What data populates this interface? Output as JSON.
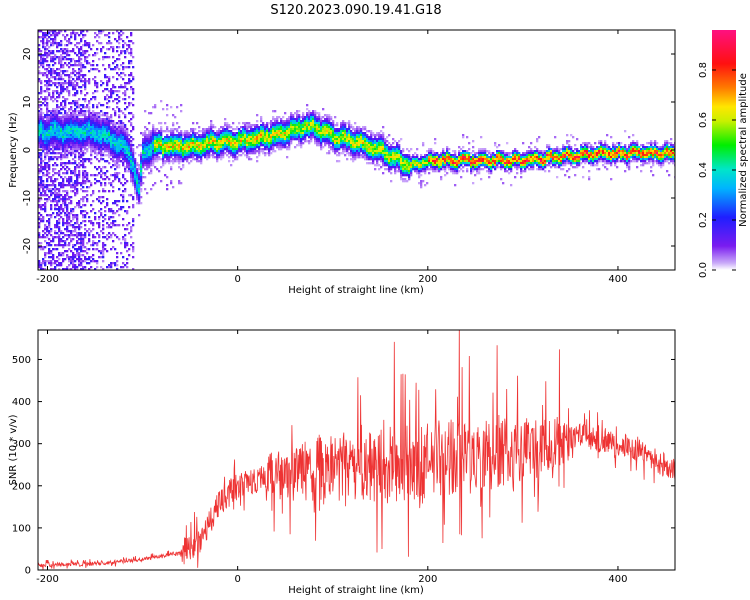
{
  "title": "S120.2023.090.19.41.G18",
  "chart_data": [
    {
      "type": "heatmap",
      "xlabel": "Height of straight line (km)",
      "ylabel": "Frequency (Hz)",
      "xlim": [
        -210,
        460
      ],
      "ylim": [
        -25,
        25
      ],
      "xticks": [
        -200,
        0,
        200,
        400
      ],
      "yticks": [
        -20,
        -10,
        0,
        10,
        20
      ],
      "colorbar": {
        "label": "Normalized spectral amplitude",
        "range": [
          0,
          0.96
        ],
        "ticks": [
          "0.0",
          "0.2",
          "0.4",
          "0.6",
          "0.8"
        ],
        "colormap": "rainbow (purple-blue-cyan-green-yellow-red-pink)"
      },
      "ridge": {
        "x": [
          -150,
          -130,
          -115,
          -105,
          -100,
          -90,
          -50,
          -20,
          0,
          30,
          50,
          70,
          80,
          100,
          120,
          140,
          160,
          180,
          200,
          250,
          300,
          350,
          400,
          460
        ],
        "y": [
          4,
          2,
          0,
          -8,
          0,
          1,
          1,
          2,
          2,
          3,
          4,
          5,
          5,
          3,
          2,
          1,
          -1,
          -3,
          -2,
          -2,
          -2,
          -1,
          -0.5,
          -0.5
        ]
      }
    },
    {
      "type": "line",
      "xlabel": "Height of straight line (km)",
      "ylabel": "SNR (10 * v/v)",
      "xlim": [
        -210,
        460
      ],
      "ylim": [
        0,
        570
      ],
      "xticks": [
        -200,
        0,
        200,
        400
      ],
      "yticks": [
        0,
        100,
        200,
        300,
        400,
        500
      ],
      "color": "#ee3333",
      "envelope": {
        "x": [
          -210,
          -150,
          -100,
          -60,
          -40,
          -30,
          -20,
          -10,
          0,
          20,
          40,
          60,
          80,
          100,
          120,
          150,
          180,
          200,
          240,
          280,
          320,
          340,
          360,
          380,
          400,
          420,
          440,
          460
        ],
        "y": [
          12,
          15,
          25,
          40,
          70,
          110,
          160,
          180,
          200,
          215,
          225,
          232,
          238,
          245,
          250,
          255,
          260,
          262,
          270,
          280,
          295,
          305,
          320,
          310,
          300,
          285,
          260,
          235
        ]
      }
    }
  ]
}
